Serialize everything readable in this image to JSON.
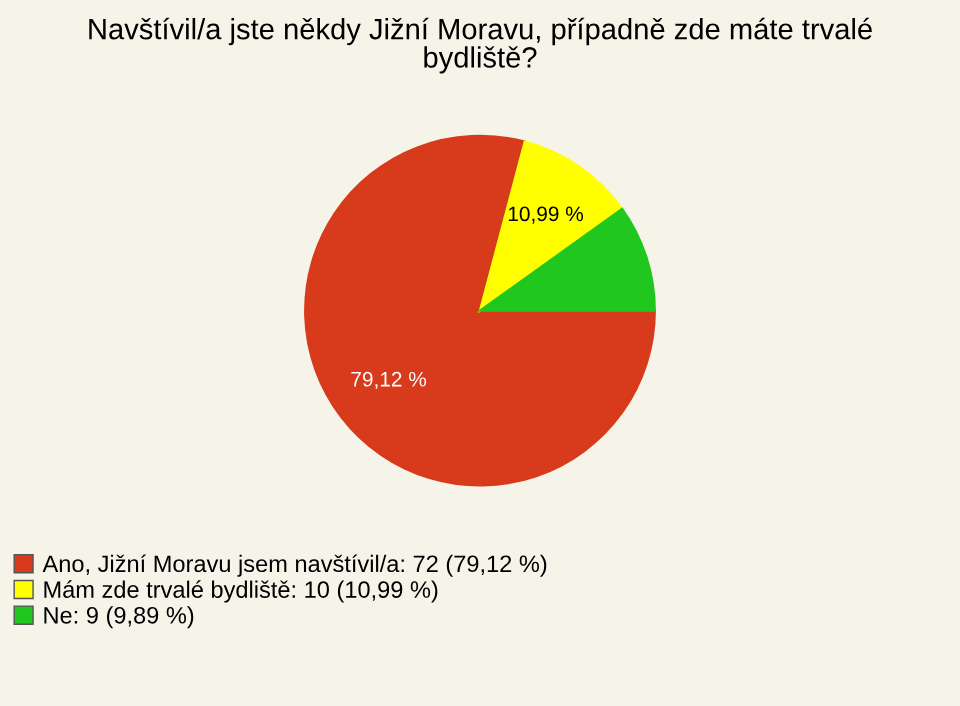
{
  "chart_data": {
    "type": "pie",
    "title": "Navštívil/a jste někdy Jižní Moravu, případně zde máte trvalé\nbydliště?",
    "categories": [
      "Ano, Jižní Moravu jsem navštívil/a: 72 (79,12 %)",
      "Mám zde trvalé bydliště: 10 (10,99 %)",
      "Ne: 9 (9,89 %)"
    ],
    "values": [
      79.12,
      10.99,
      9.89
    ],
    "colors": [
      "#d83a1c",
      "#ffff00",
      "#1fc71f"
    ],
    "value_labels": [
      "79,12 %",
      "10,99 %",
      null
    ],
    "legend": "bottom left"
  }
}
